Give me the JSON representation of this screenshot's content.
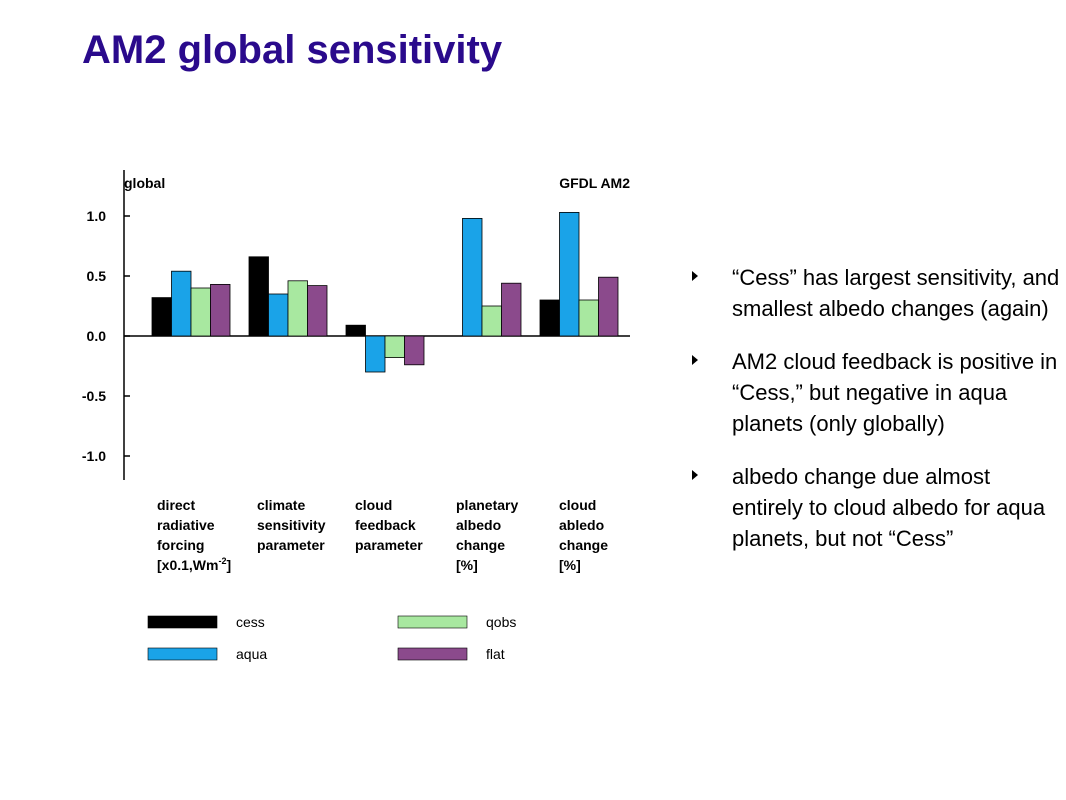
{
  "slide": {
    "title": "AM2 global sensitivity"
  },
  "bullets": [
    {
      "text": "“Cess” has largest sensitivity, and smallest albedo changes (again)"
    },
    {
      "text": "AM2 cloud feedback is positive in “Cess,” but negative in aqua planets (only globally)"
    },
    {
      "text": "albedo change due almost entirely to cloud albedo for aqua planets, but not “Cess”"
    }
  ],
  "chart_data": {
    "type": "bar",
    "title": "global",
    "subtitle": "GFDL AM2",
    "ylim": [
      -1.2,
      1.3
    ],
    "yticks": [
      1.0,
      0.5,
      0.0,
      -0.5,
      -1.0
    ],
    "ytick_labels": [
      "1.0",
      "0.5",
      "0.0",
      "-0.5",
      "-1.0"
    ],
    "categories": [
      [
        "direct",
        "radiative",
        "forcing",
        "[x0.1,Wm-2]"
      ],
      [
        "climate",
        "sensitivity",
        "parameter"
      ],
      [
        "cloud",
        "feedback",
        "parameter"
      ],
      [
        "planetary",
        "albedo",
        "change",
        "[%]"
      ],
      [
        "cloud",
        "abledo",
        "change",
        "[%]"
      ]
    ],
    "series": [
      {
        "name": "cess",
        "color": "#000000",
        "values": [
          0.32,
          0.66,
          0.09,
          0.0,
          0.3
        ]
      },
      {
        "name": "aqua",
        "color": "#1aa3e8",
        "values": [
          0.54,
          0.35,
          -0.3,
          0.98,
          1.03
        ]
      },
      {
        "name": "qobs",
        "color": "#a8e8a0",
        "values": [
          0.4,
          0.46,
          -0.18,
          0.25,
          0.3
        ]
      },
      {
        "name": "flat",
        "color": "#8b4a8c",
        "values": [
          0.43,
          0.42,
          -0.24,
          0.44,
          0.49
        ]
      }
    ],
    "grid": false,
    "legend_position": "bottom"
  }
}
